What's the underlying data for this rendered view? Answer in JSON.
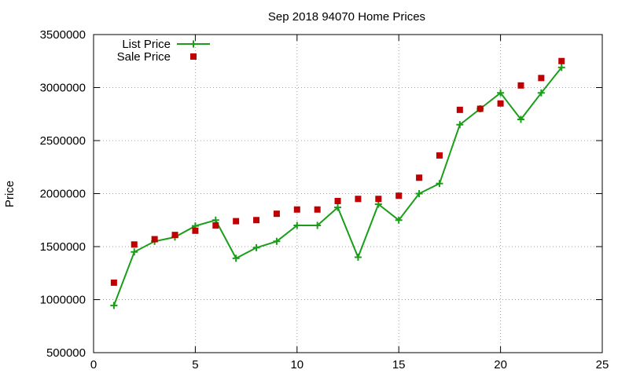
{
  "chart_data": {
    "type": "line",
    "title": "Sep 2018 94070 Home Prices",
    "xlabel": "",
    "ylabel": "Price",
    "xlim": [
      0,
      25
    ],
    "ylim": [
      500000,
      3500000
    ],
    "xticks": [
      0,
      5,
      10,
      15,
      20,
      25
    ],
    "yticks": [
      500000,
      1000000,
      1500000,
      2000000,
      2500000,
      3000000,
      3500000
    ],
    "xtick_labels": [
      "0",
      "5",
      "10",
      "15",
      "20",
      "25"
    ],
    "ytick_labels": [
      "500000",
      "1000000",
      "1500000",
      "2000000",
      "2500000",
      "3000000",
      "3500000"
    ],
    "grid": true,
    "legend_position": "top-left",
    "series": [
      {
        "name": "List Price",
        "style": "line-with-plus-markers",
        "color": "#1a9e1a",
        "points": [
          [
            1,
            945000
          ],
          [
            2,
            1450000
          ],
          [
            3,
            1550000
          ],
          [
            4,
            1590000
          ],
          [
            5,
            1695000
          ],
          [
            6,
            1750000
          ],
          [
            7,
            1390000
          ],
          [
            8,
            1490000
          ],
          [
            9,
            1550000
          ],
          [
            10,
            1700000
          ],
          [
            11,
            1700000
          ],
          [
            12,
            1870000
          ],
          [
            13,
            1400000
          ],
          [
            14,
            1900000
          ],
          [
            15,
            1750000
          ],
          [
            16,
            2000000
          ],
          [
            17,
            2095000
          ],
          [
            18,
            2650000
          ],
          [
            19,
            2800000
          ],
          [
            20,
            2950000
          ],
          [
            21,
            2700000
          ],
          [
            22,
            2950000
          ],
          [
            23,
            3190000
          ]
        ]
      },
      {
        "name": "Sale Price",
        "style": "square-markers",
        "color": "#c00000",
        "points": [
          [
            1,
            1160000
          ],
          [
            2,
            1520000
          ],
          [
            3,
            1570000
          ],
          [
            4,
            1610000
          ],
          [
            5,
            1650000
          ],
          [
            6,
            1700000
          ],
          [
            7,
            1740000
          ],
          [
            8,
            1750000
          ],
          [
            9,
            1810000
          ],
          [
            10,
            1850000
          ],
          [
            11,
            1850000
          ],
          [
            12,
            1930000
          ],
          [
            13,
            1950000
          ],
          [
            14,
            1950000
          ],
          [
            15,
            1980000
          ],
          [
            16,
            2150000
          ],
          [
            17,
            2360000
          ],
          [
            18,
            2790000
          ],
          [
            19,
            2800000
          ],
          [
            20,
            2850000
          ],
          [
            21,
            3020000
          ],
          [
            22,
            3090000
          ],
          [
            23,
            3250000
          ]
        ]
      }
    ]
  }
}
